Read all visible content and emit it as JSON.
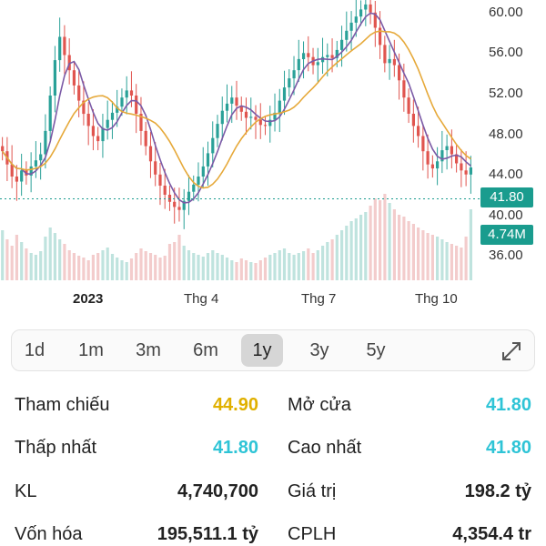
{
  "chart_data": {
    "type": "candlestick",
    "y_ticks": [
      "60.00",
      "56.00",
      "52.00",
      "48.00",
      "44.00",
      "40.00",
      "36.00"
    ],
    "x_ticks": [
      "2023",
      "Thg 4",
      "Thg 7",
      "Thg 10"
    ],
    "last_price": "41.80",
    "last_volume": "4.74M",
    "ylim": [
      35,
      62
    ],
    "close_series": [
      46.5,
      45.2,
      44.0,
      43.5,
      44.6,
      44.1,
      45.0,
      45.6,
      46.2,
      48.5,
      52.0,
      55.5,
      57.8,
      56.0,
      54.5,
      53.0,
      51.5,
      50.2,
      49.0,
      48.0,
      47.5,
      48.8,
      49.6,
      50.3,
      50.9,
      51.8,
      52.5,
      52.0,
      50.2,
      48.5,
      47.0,
      45.5,
      44.2,
      43.1,
      42.2,
      41.5,
      41.0,
      40.7,
      41.6,
      42.5,
      43.2,
      44.0,
      45.0,
      46.3,
      47.8,
      49.2,
      50.5,
      51.2,
      51.8,
      51.0,
      50.4,
      49.8,
      49.9,
      49.6,
      49.1,
      49.0,
      49.6,
      50.3,
      51.5,
      52.8,
      53.7,
      54.5,
      55.6,
      56.2,
      55.8,
      55.0,
      55.3,
      55.8,
      56.0,
      55.7,
      56.5,
      57.5,
      58.4,
      59.2,
      59.8,
      60.5,
      61.0,
      60.2,
      58.7,
      57.0,
      55.2,
      55.6,
      55.0,
      53.5,
      51.8,
      50.2,
      49.0,
      48.0,
      46.5,
      45.2,
      44.8,
      45.5,
      46.6,
      47.0,
      46.2,
      45.3,
      44.6,
      44.2,
      44.9
    ],
    "volume_series": [
      0.55,
      0.45,
      0.38,
      0.5,
      0.42,
      0.35,
      0.3,
      0.28,
      0.32,
      0.48,
      0.58,
      0.52,
      0.45,
      0.4,
      0.33,
      0.3,
      0.27,
      0.25,
      0.22,
      0.28,
      0.3,
      0.33,
      0.36,
      0.29,
      0.25,
      0.22,
      0.2,
      0.24,
      0.3,
      0.35,
      0.32,
      0.3,
      0.28,
      0.25,
      0.27,
      0.4,
      0.42,
      0.5,
      0.38,
      0.33,
      0.3,
      0.28,
      0.26,
      0.3,
      0.33,
      0.3,
      0.28,
      0.25,
      0.22,
      0.2,
      0.24,
      0.22,
      0.2,
      0.19,
      0.22,
      0.25,
      0.28,
      0.3,
      0.33,
      0.35,
      0.3,
      0.28,
      0.3,
      0.32,
      0.35,
      0.3,
      0.33,
      0.38,
      0.42,
      0.45,
      0.5,
      0.55,
      0.6,
      0.65,
      0.68,
      0.72,
      0.75,
      0.82,
      0.9,
      0.88,
      0.95,
      0.85,
      0.78,
      0.72,
      0.7,
      0.65,
      0.62,
      0.58,
      0.55,
      0.52,
      0.5,
      0.48,
      0.45,
      0.42,
      0.4,
      0.38,
      0.36,
      0.48,
      0.78
    ],
    "price_line": 41.8
  },
  "periods": [
    {
      "label": "1d",
      "active": false
    },
    {
      "label": "1m",
      "active": false
    },
    {
      "label": "3m",
      "active": false
    },
    {
      "label": "6m",
      "active": false
    },
    {
      "label": "1y",
      "active": true
    },
    {
      "label": "3y",
      "active": false
    },
    {
      "label": "5y",
      "active": false
    }
  ],
  "stats": {
    "tham_chieu": {
      "label": "Tham chiếu",
      "value": "44.90",
      "color": "#e0b000"
    },
    "mo_cua": {
      "label": "Mở cửa",
      "value": "41.80",
      "color": "#2ec4d6"
    },
    "thap_nhat": {
      "label": "Thấp nhất",
      "value": "41.80",
      "color": "#2ec4d6"
    },
    "cao_nhat": {
      "label": "Cao nhất",
      "value": "41.80",
      "color": "#2ec4d6"
    },
    "kl": {
      "label": "KL",
      "value": "4,740,700",
      "color": "#222222"
    },
    "gia_tri": {
      "label": "Giá trị",
      "value": "198.2 tỷ",
      "color": "#222222"
    },
    "von_hoa": {
      "label": "Vốn hóa",
      "value": "195,511.1 tỷ",
      "color": "#222222"
    },
    "cplh": {
      "label": "CPLH",
      "value": "4,354.4 tr",
      "color": "#222222"
    }
  },
  "colors": {
    "up": "#2aa198",
    "down": "#e0554f",
    "ma_short": "#7b5aa6",
    "ma_long": "#e6a93a",
    "accent": "#1a9c8e"
  },
  "icons": {
    "expand": "expand-arrows-icon"
  }
}
